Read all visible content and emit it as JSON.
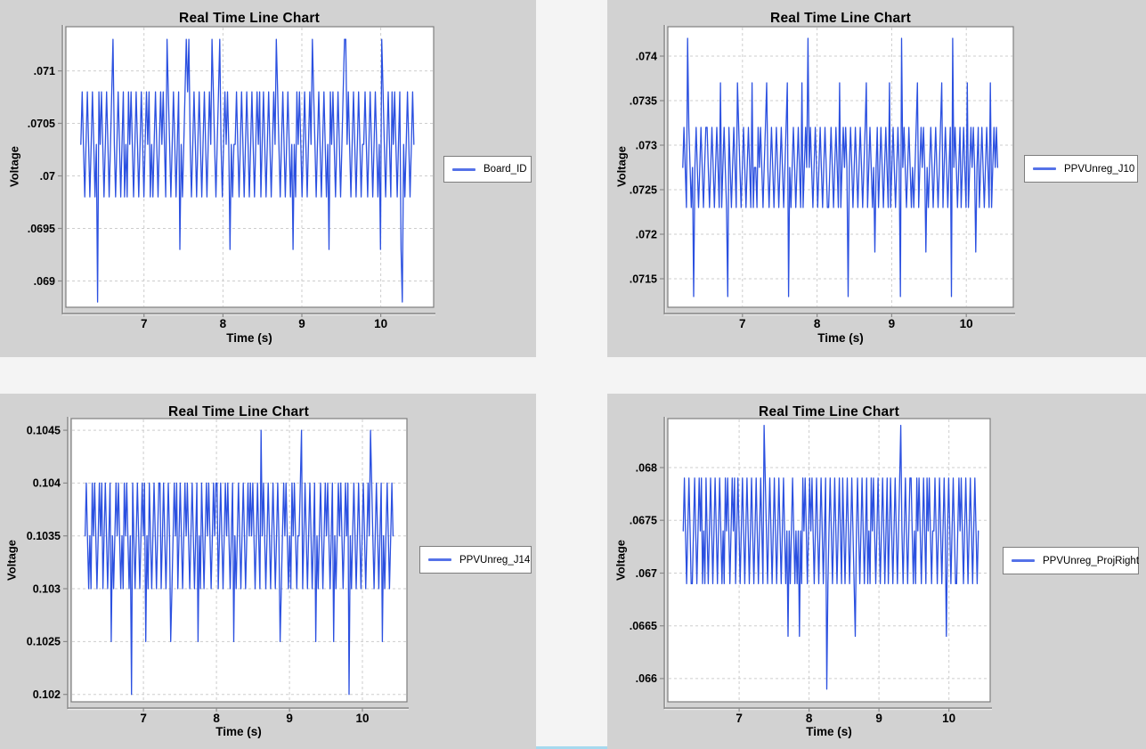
{
  "page": {
    "background_color": "#f4f4f4",
    "panel_color": "#d2d2d2",
    "accent_strip_color": "#a6d9ee"
  },
  "chart_data": [
    {
      "type": "line",
      "title": "Real Time Line Chart",
      "xlabel": "Time (s)",
      "ylabel": "Voltage",
      "series_label": "Board_ID",
      "line_color": "#2b50e0",
      "legend_position": "right",
      "grid": true,
      "xlim": [
        6.01,
        10.67
      ],
      "ylim": [
        0.06875,
        0.07142
      ],
      "xticks": {
        "values": [
          7,
          8,
          9,
          10
        ],
        "labels": [
          "7",
          "8",
          "9",
          "10"
        ]
      },
      "yticks": {
        "values": [
          0.071,
          0.0705,
          0.07,
          0.0695,
          0.069
        ],
        "labels": [
          ".071",
          ".0705",
          ".07",
          ".0695",
          ".069"
        ]
      },
      "x_data_range": [
        6.2,
        10.42
      ],
      "levels": [
        0.0688,
        0.0693,
        0.0698,
        0.0703,
        0.0708,
        0.0713
      ],
      "samples_encoding": "each digit is an index into levels[], samples evenly spaced over x_data_range",
      "samples": "34323432343230434323432345323432342324343234323432343423234323434325432343234132345453234323432343234354323453234343132334323432343234323434234323432343543234323432313243432343234354323432343231434323432345534323432343233432343234323154323432434323410323432343"
    },
    {
      "type": "line",
      "title": "Real Time Line Chart",
      "xlabel": "Time (s)",
      "ylabel": "Voltage",
      "series_label": "PPVUnreg_J10",
      "line_color": "#2b50e0",
      "legend_position": "right",
      "grid": true,
      "xlim": [
        6.0,
        10.63
      ],
      "ylim": [
        0.07118,
        0.07433
      ],
      "xticks": {
        "values": [
          7,
          8,
          9,
          10
        ],
        "labels": [
          "7",
          "8",
          "9",
          "10"
        ]
      },
      "yticks": {
        "values": [
          0.074,
          0.0735,
          0.073,
          0.0725,
          0.072,
          0.0715
        ],
        "labels": [
          ".074",
          ".0735",
          ".073",
          ".0725",
          ".072",
          ".0715"
        ]
      },
      "x_data_range": [
        6.2,
        10.42
      ],
      "levels": [
        0.0713,
        0.0718,
        0.0723,
        0.07275,
        0.0732,
        0.0737,
        0.0742
      ],
      "samples_encoding": "each digit is an index into levels[], samples evenly spaced over x_data_range",
      "samples": "34326432303432343234432343234325234320432343254323432343252332434323453234323432343234503234323432523436343234323432343223432343252343430343234323432345234323134234323432523432343063432343232345234343132343234323452343234063432342343252343431342343234325234343"
    },
    {
      "type": "line",
      "title": "Real Time Line Chart",
      "xlabel": "Time (s)",
      "ylabel": "Voltage",
      "series_label": "PPVUnreg_J14",
      "line_color": "#2b50e0",
      "legend_position": "right",
      "grid": true,
      "xlim": [
        6.01,
        10.61
      ],
      "ylim": [
        0.10193,
        0.10461
      ],
      "xticks": {
        "values": [
          7,
          8,
          9,
          10
        ],
        "labels": [
          "7",
          "8",
          "9",
          "10"
        ]
      },
      "yticks": {
        "values": [
          0.1045,
          0.104,
          0.1035,
          0.103,
          0.1025,
          0.102
        ],
        "labels": [
          "0.1045",
          "0.104",
          "0.1035",
          "0.103",
          "0.1025",
          "0.102"
        ]
      },
      "x_data_range": [
        6.2,
        10.42
      ],
      "levels": [
        0.102,
        0.1025,
        0.103,
        0.1035,
        0.104,
        0.1045
      ],
      "samples_encoding": "each digit is an index into levels[], samples evenly spaced over x_data_range",
      "samples": "34323243432343423432341323434323243432304323432343413243234323442343234312343423432343432343234132432343432343442343234343234132343234323434343234325343234323432343123434323243432334523432343234132343234343234132343432343403234323432343234354323432341323432343"
    },
    {
      "type": "line",
      "title": "Real Time Line Chart",
      "xlabel": "Time (s)",
      "ylabel": "Voltage",
      "series_label": "PPVUnreg_ProjRight",
      "line_color": "#2b50e0",
      "legend_position": "right",
      "grid": true,
      "xlim": [
        5.98,
        10.59
      ],
      "ylim": [
        0.06578,
        0.068464
      ],
      "xticks": {
        "values": [
          7,
          8,
          9,
          10
        ],
        "labels": [
          "7",
          "8",
          "9",
          "10"
        ]
      },
      "yticks": {
        "values": [
          0.068,
          0.0675,
          0.067,
          0.0665,
          0.066
        ],
        "labels": [
          ".068",
          ".0675",
          ".067",
          ".0665",
          ".066"
        ]
      },
      "x_data_range": [
        6.2,
        10.42
      ],
      "levels": [
        0.0659,
        0.0664,
        0.0669,
        0.0674,
        0.0679,
        0.0684
      ],
      "samples_encoding": "each digit is an index into levels[], samples evenly spaced over x_data_range",
      "samples": "34323432234323434232432343234323432324343234342343234323432343234323432543234323432343234323132343232313243432343432343234323402343234323432432343234321343234323423243432343234323423432343234532343234432324343234324343233432343234313432343223434323432343234323"
    }
  ]
}
